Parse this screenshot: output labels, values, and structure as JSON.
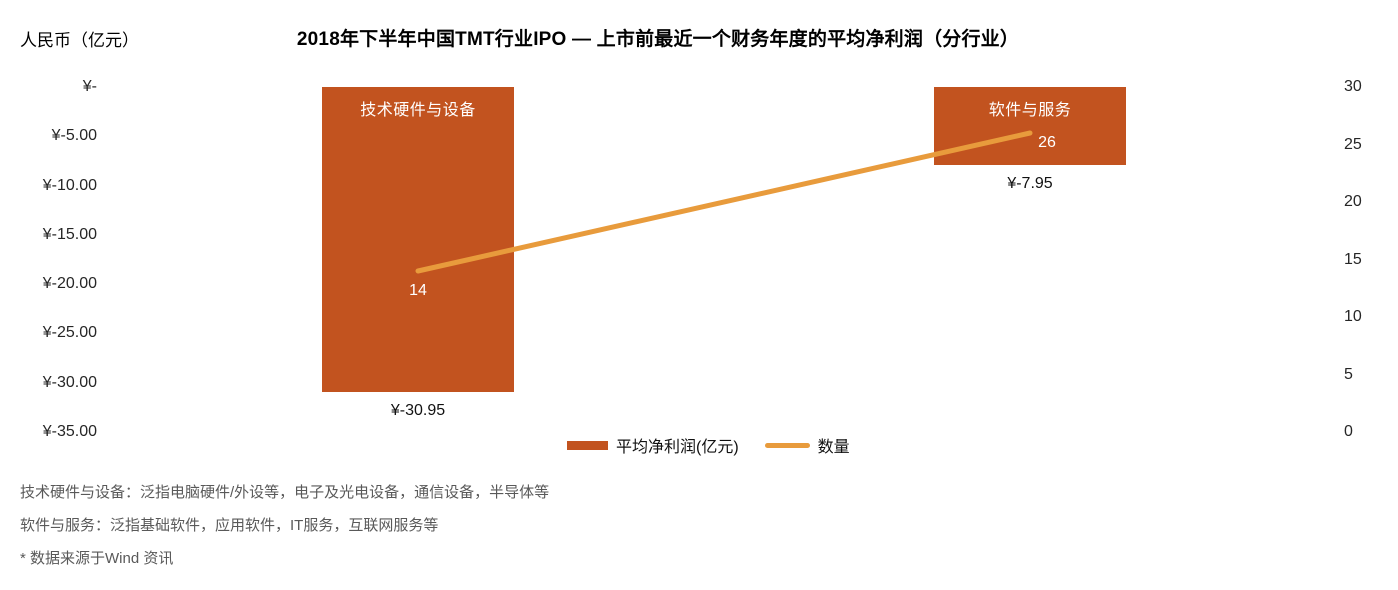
{
  "header": {
    "y_axis_title": "人民币（亿元）",
    "title": "2018年下半年中国TMT行业IPO — 上市前最近一个财务年度的平均净利润（分行业）"
  },
  "chart_data": {
    "type": "bar",
    "title": "2018年下半年中国TMT行业IPO — 上市前最近一个财务年度的平均净利润（分行业）",
    "categories": [
      "技术硬件与设备",
      "软件与服务"
    ],
    "series": [
      {
        "name": "平均净利润(亿元)",
        "type": "bar",
        "axis": "left",
        "values": [
          -30.95,
          -7.95
        ],
        "data_labels": [
          "¥-30.95",
          "¥-7.95"
        ],
        "color": "#C2531F"
      },
      {
        "name": "数量",
        "type": "line",
        "axis": "right",
        "values": [
          14,
          26
        ],
        "data_labels": [
          "14",
          "26"
        ],
        "color": "#E89B3C"
      }
    ],
    "left_axis": {
      "title": "人民币（亿元）",
      "range": [
        -35,
        0
      ],
      "ticks": [
        {
          "label": "¥-",
          "value": 0
        },
        {
          "label": "¥-5.00",
          "value": -5
        },
        {
          "label": "¥-10.00",
          "value": -10
        },
        {
          "label": "¥-15.00",
          "value": -15
        },
        {
          "label": "¥-20.00",
          "value": -20
        },
        {
          "label": "¥-25.00",
          "value": -25
        },
        {
          "label": "¥-30.00",
          "value": -30
        },
        {
          "label": "¥-35.00",
          "value": -35
        }
      ]
    },
    "right_axis": {
      "range": [
        0,
        30
      ],
      "ticks": [
        {
          "label": "30",
          "value": 30
        },
        {
          "label": "25",
          "value": 25
        },
        {
          "label": "20",
          "value": 20
        },
        {
          "label": "15",
          "value": 15
        },
        {
          "label": "10",
          "value": 10
        },
        {
          "label": "5",
          "value": 5
        },
        {
          "label": "0",
          "value": 0
        }
      ]
    },
    "grid": false,
    "legend": {
      "position": "bottom-center",
      "items": [
        {
          "label": "平均净利润(亿元)",
          "swatch": "bar",
          "color": "#C2531F"
        },
        {
          "label": "数量",
          "swatch": "line",
          "color": "#E89B3C"
        }
      ]
    }
  },
  "footnotes": [
    "技术硬件与设备：泛指电脑硬件/外设等，电子及光电设备，通信设备，半导体等",
    "软件与服务：泛指基础软件，应用软件，IT服务，互联网服务等",
    "* 数据来源于Wind 资讯"
  ],
  "colors": {
    "bar": "#C2531F",
    "line": "#E89B3C",
    "axis_text": "#262626",
    "title_text": "#000000",
    "bar_label_text": "#FFFFFF",
    "footnote_text": "#595959",
    "background": "#FFFFFF"
  }
}
